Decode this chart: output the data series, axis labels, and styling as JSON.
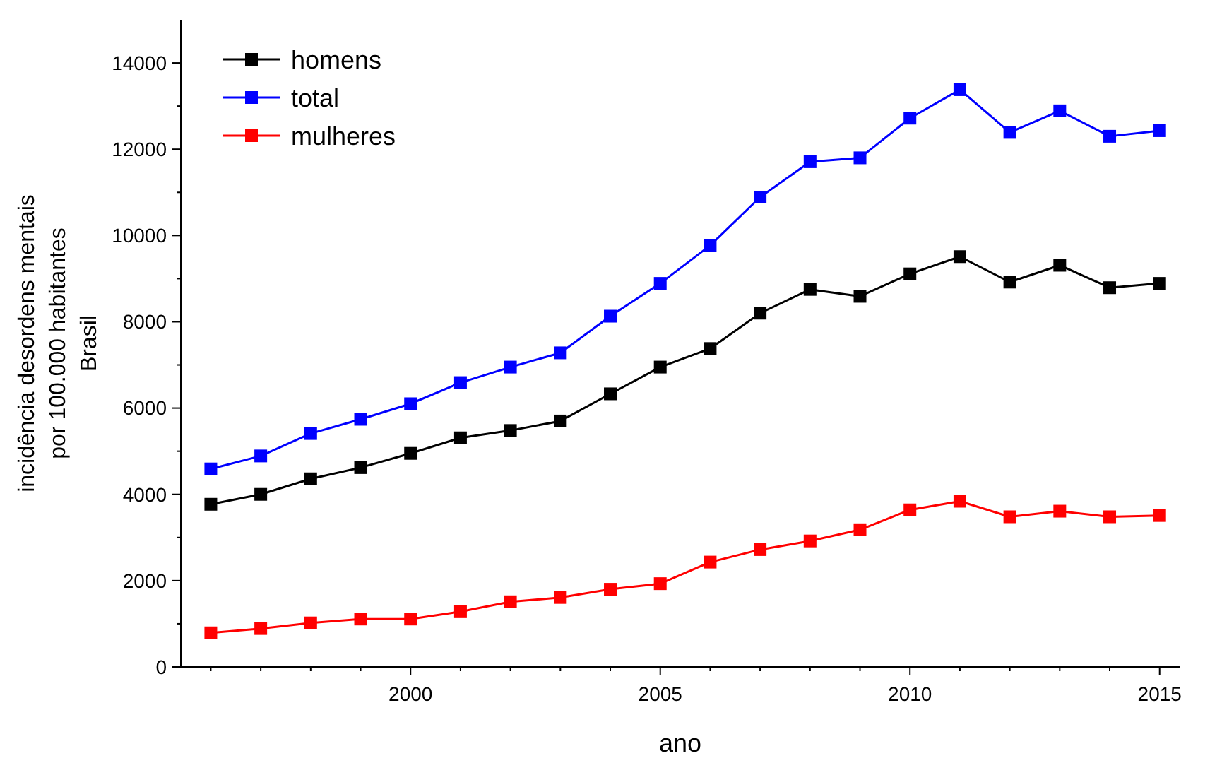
{
  "chart_data": {
    "type": "line",
    "xlabel": "ano",
    "ylabel": "incidência desordens mentais\npor 100.000 habitantes\nBrasil",
    "x": [
      1996,
      1997,
      1998,
      1999,
      2000,
      2001,
      2002,
      2003,
      2004,
      2005,
      2006,
      2007,
      2008,
      2009,
      2010,
      2011,
      2012,
      2013,
      2014,
      2015
    ],
    "series": [
      {
        "name": "homens",
        "color": "#000000",
        "values": [
          3770,
          4000,
          4360,
          4620,
          4950,
          5310,
          5480,
          5700,
          6330,
          6950,
          7380,
          8200,
          8750,
          8590,
          9110,
          9510,
          8920,
          9310,
          8790,
          8890
        ]
      },
      {
        "name": "total",
        "color": "#0000ff",
        "values": [
          4590,
          4890,
          5410,
          5740,
          6100,
          6590,
          6950,
          7280,
          8130,
          8890,
          9770,
          10890,
          11710,
          11800,
          12720,
          13380,
          12390,
          12890,
          12300,
          12430
        ]
      },
      {
        "name": "mulheres",
        "color": "#ff0000",
        "values": [
          790,
          890,
          1020,
          1110,
          1110,
          1280,
          1510,
          1610,
          1800,
          1930,
          2430,
          2720,
          2920,
          3180,
          3640,
          3840,
          3480,
          3610,
          3480,
          3510
        ]
      }
    ],
    "xlim": [
      1995.4,
      2015.4
    ],
    "xticks": [
      {
        "value": 1996,
        "label": null
      },
      {
        "value": 1997,
        "label": null
      },
      {
        "value": 1998,
        "label": null
      },
      {
        "value": 1999,
        "label": null
      },
      2000,
      {
        "value": 2001,
        "label": null
      },
      {
        "value": 2002,
        "label": null
      },
      {
        "value": 2003,
        "label": null
      },
      {
        "value": 2004,
        "label": null
      },
      2005,
      {
        "value": 2006,
        "label": null
      },
      {
        "value": 2007,
        "label": null
      },
      {
        "value": 2008,
        "label": null
      },
      {
        "value": 2009,
        "label": null
      },
      2010,
      {
        "value": 2011,
        "label": null
      },
      {
        "value": 2012,
        "label": null
      },
      {
        "value": 2013,
        "label": null
      },
      {
        "value": 2014,
        "label": null
      },
      2015
    ],
    "ylim": [
      0,
      15000
    ],
    "yticks": [
      0,
      {
        "value": 1000,
        "label": null
      },
      2000,
      {
        "value": 3000,
        "label": null
      },
      4000,
      {
        "value": 5000,
        "label": null
      },
      6000,
      {
        "value": 7000,
        "label": null
      },
      8000,
      {
        "value": 9000,
        "label": null
      },
      10000,
      {
        "value": 11000,
        "label": null
      },
      12000,
      {
        "value": 13000,
        "label": null
      },
      14000
    ],
    "legend": "top left",
    "marker": "square",
    "line_style": "solid",
    "grid": false
  }
}
